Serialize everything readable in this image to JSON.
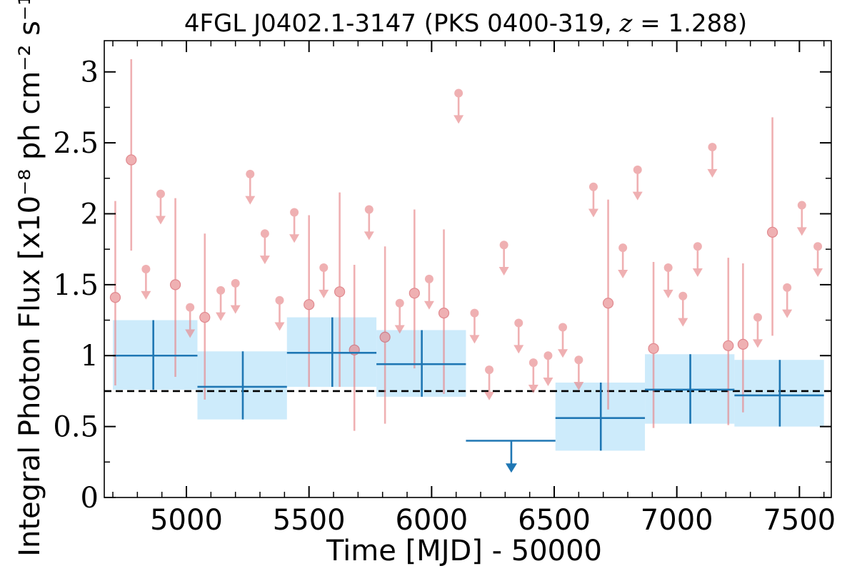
{
  "chart_data": {
    "type": "scatter",
    "title_prefix": "4FGL J0402.1-3147 (PKS 0400-319, ",
    "title_math_lhs": "z",
    "title_math_op": " = ",
    "title_math_rhs": "1.288",
    "title_suffix": ")",
    "xlabel": "Time [MJD] - 50000",
    "ylabel": "Integral Photon Flux [x10⁻⁸ ph cm⁻² s⁻¹]",
    "xlim": [
      4665,
      7630
    ],
    "ylim": [
      0,
      3.22
    ],
    "x_ticks": [
      5000,
      5500,
      6000,
      6500,
      7000,
      7500
    ],
    "x_tick_labels": [
      "5000",
      "5500",
      "6000",
      "6500",
      "7000",
      "7500"
    ],
    "x_minor_tick_step": 100,
    "y_ticks": [
      0,
      0.5,
      1,
      1.5,
      2,
      2.5,
      3
    ],
    "y_tick_labels": [
      "0",
      "0.5",
      "1",
      "1.5",
      "2",
      "2.5",
      "3"
    ],
    "y_minor_tick_step": 0.25,
    "mean_flux": 0.75,
    "colors": {
      "short_bins": "#e8868a",
      "long_bins": "#1f77b4",
      "long_bin_band": "#cdebfb",
      "mean_line": "#000000"
    },
    "long_bins": [
      {
        "x": 4865,
        "x_lo": 4700,
        "x_hi": 5045,
        "y": 1.0,
        "y_lo": 0.76,
        "y_hi": 1.25,
        "upper_limit": false
      },
      {
        "x": 5230,
        "x_lo": 5045,
        "x_hi": 5410,
        "y": 0.78,
        "y_lo": 0.55,
        "y_hi": 1.03,
        "upper_limit": false
      },
      {
        "x": 5595,
        "x_lo": 5410,
        "x_hi": 5775,
        "y": 1.02,
        "y_lo": 0.78,
        "y_hi": 1.27,
        "upper_limit": false
      },
      {
        "x": 5960,
        "x_lo": 5775,
        "x_hi": 6140,
        "y": 0.94,
        "y_lo": 0.71,
        "y_hi": 1.18,
        "upper_limit": false
      },
      {
        "x": 6325,
        "x_lo": 6140,
        "x_hi": 6505,
        "y": 0.4,
        "upper_limit": true
      },
      {
        "x": 6690,
        "x_lo": 6505,
        "x_hi": 6870,
        "y": 0.56,
        "y_lo": 0.33,
        "y_hi": 0.81,
        "upper_limit": false
      },
      {
        "x": 7055,
        "x_lo": 6870,
        "x_hi": 7235,
        "y": 0.76,
        "y_lo": 0.52,
        "y_hi": 1.01,
        "upper_limit": false
      },
      {
        "x": 7420,
        "x_lo": 7235,
        "x_hi": 7600,
        "y": 0.72,
        "y_lo": 0.5,
        "y_hi": 0.97,
        "upper_limit": false
      }
    ],
    "short_bins": [
      {
        "x": 4710,
        "y": 1.41,
        "y_lo": 0.79,
        "y_hi": 2.09,
        "upper_limit": false
      },
      {
        "x": 4775,
        "y": 2.38,
        "y_lo": 1.74,
        "y_hi": 3.09,
        "upper_limit": false
      },
      {
        "x": 4835,
        "y": 1.61,
        "upper_limit": true
      },
      {
        "x": 4895,
        "y": 2.14,
        "upper_limit": true
      },
      {
        "x": 4955,
        "y": 1.5,
        "y_lo": 0.85,
        "y_hi": 2.11,
        "upper_limit": false
      },
      {
        "x": 5015,
        "y": 1.34,
        "upper_limit": true
      },
      {
        "x": 5075,
        "y": 1.27,
        "y_lo": 0.69,
        "y_hi": 1.86,
        "upper_limit": false
      },
      {
        "x": 5140,
        "y": 1.46,
        "upper_limit": true
      },
      {
        "x": 5200,
        "y": 1.51,
        "upper_limit": true
      },
      {
        "x": 5260,
        "y": 2.28,
        "upper_limit": true
      },
      {
        "x": 5320,
        "y": 1.86,
        "upper_limit": true
      },
      {
        "x": 5380,
        "y": 1.39,
        "upper_limit": true
      },
      {
        "x": 5440,
        "y": 2.01,
        "upper_limit": true
      },
      {
        "x": 5500,
        "y": 1.36,
        "y_lo": 0.78,
        "y_hi": 1.99,
        "upper_limit": false
      },
      {
        "x": 5560,
        "y": 1.62,
        "upper_limit": true
      },
      {
        "x": 5625,
        "y": 1.45,
        "y_lo": 0.78,
        "y_hi": 2.15,
        "upper_limit": false
      },
      {
        "x": 5685,
        "y": 1.04,
        "y_lo": 0.47,
        "y_hi": 1.64,
        "upper_limit": false
      },
      {
        "x": 5745,
        "y": 2.03,
        "upper_limit": true
      },
      {
        "x": 5810,
        "y": 1.13,
        "y_lo": 0.52,
        "y_hi": 1.77,
        "upper_limit": false
      },
      {
        "x": 5870,
        "y": 1.37,
        "upper_limit": true
      },
      {
        "x": 5930,
        "y": 1.44,
        "y_lo": 0.91,
        "y_hi": 2.03,
        "upper_limit": false
      },
      {
        "x": 5990,
        "y": 1.54,
        "upper_limit": true
      },
      {
        "x": 6050,
        "y": 1.3,
        "y_lo": 0.73,
        "y_hi": 1.89,
        "upper_limit": false
      },
      {
        "x": 6110,
        "y": 2.85,
        "upper_limit": true
      },
      {
        "x": 6175,
        "y": 1.3,
        "upper_limit": true
      },
      {
        "x": 6235,
        "y": 0.9,
        "upper_limit": true
      },
      {
        "x": 6295,
        "y": 1.78,
        "upper_limit": true
      },
      {
        "x": 6355,
        "y": 1.23,
        "upper_limit": true
      },
      {
        "x": 6415,
        "y": 0.95,
        "upper_limit": true
      },
      {
        "x": 6475,
        "y": 1.0,
        "upper_limit": true
      },
      {
        "x": 6535,
        "y": 1.2,
        "upper_limit": true
      },
      {
        "x": 6600,
        "y": 0.97,
        "upper_limit": true
      },
      {
        "x": 6660,
        "y": 2.19,
        "upper_limit": true
      },
      {
        "x": 6720,
        "y": 1.37,
        "y_lo": 0.62,
        "y_hi": 2.1,
        "upper_limit": false
      },
      {
        "x": 6780,
        "y": 1.76,
        "upper_limit": true
      },
      {
        "x": 6840,
        "y": 2.31,
        "upper_limit": true
      },
      {
        "x": 6905,
        "y": 1.05,
        "y_lo": 0.49,
        "y_hi": 1.66,
        "upper_limit": false
      },
      {
        "x": 6965,
        "y": 1.62,
        "upper_limit": true
      },
      {
        "x": 7025,
        "y": 1.42,
        "upper_limit": true
      },
      {
        "x": 7085,
        "y": 1.77,
        "upper_limit": true
      },
      {
        "x": 7145,
        "y": 2.47,
        "upper_limit": true
      },
      {
        "x": 7210,
        "y": 1.07,
        "y_lo": 0.51,
        "y_hi": 1.69,
        "upper_limit": false
      },
      {
        "x": 7270,
        "y": 1.08,
        "y_lo": 0.6,
        "y_hi": 1.65,
        "upper_limit": false
      },
      {
        "x": 7330,
        "y": 1.27,
        "upper_limit": true
      },
      {
        "x": 7390,
        "y": 1.87,
        "y_lo": 1.14,
        "y_hi": 2.68,
        "upper_limit": false
      },
      {
        "x": 7450,
        "y": 1.48,
        "upper_limit": true
      },
      {
        "x": 7510,
        "y": 2.06,
        "upper_limit": true
      },
      {
        "x": 7575,
        "y": 1.77,
        "upper_limit": true
      }
    ]
  }
}
